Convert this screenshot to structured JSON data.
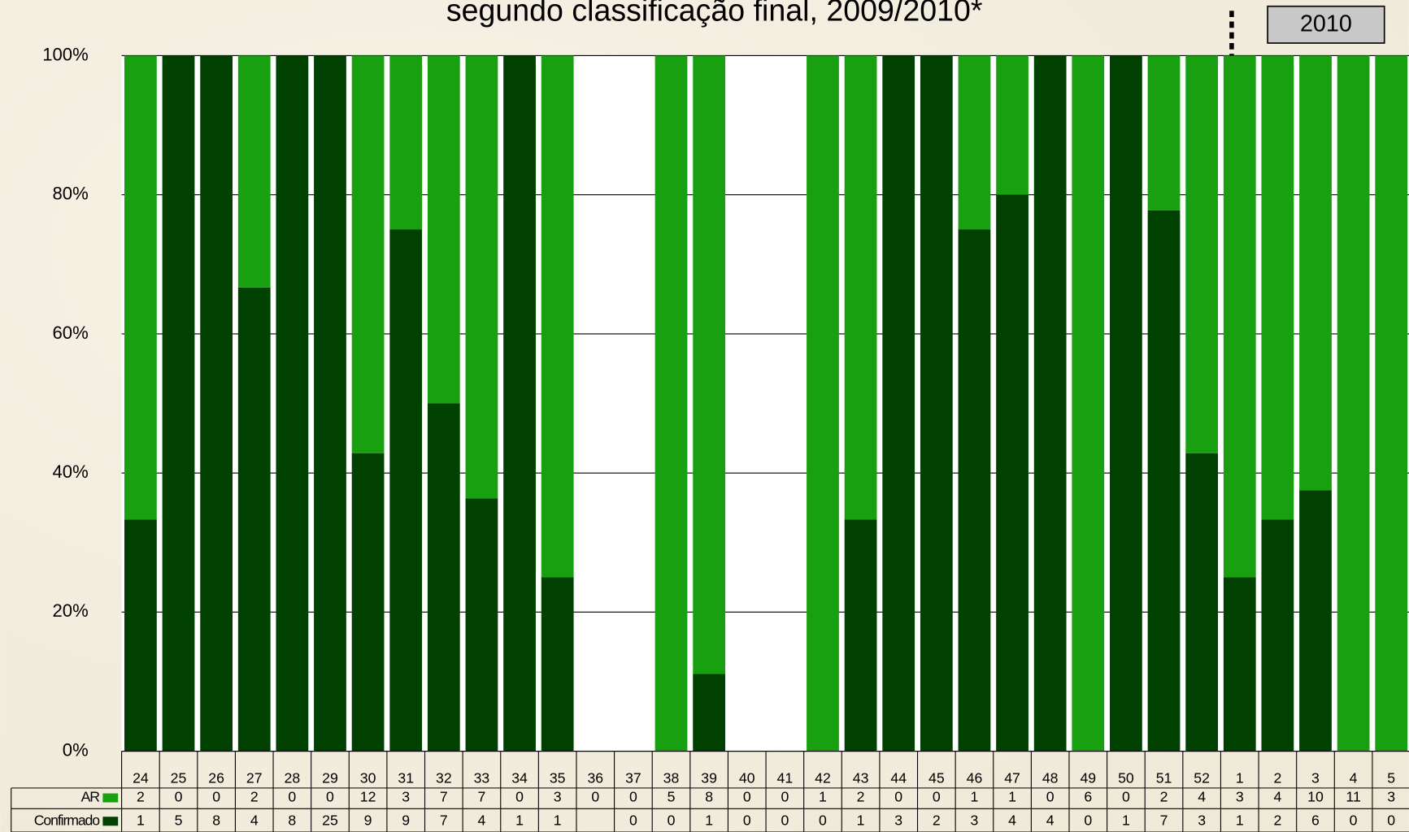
{
  "chart_data": {
    "type": "stacked_bar_percent",
    "title": "segundo classificação final, 2009/2010*",
    "annotation": "2010",
    "categories": [
      "24",
      "25",
      "26",
      "27",
      "28",
      "29",
      "30",
      "31",
      "32",
      "33",
      "34",
      "35",
      "36",
      "37",
      "38",
      "39",
      "40",
      "41",
      "42",
      "43",
      "44",
      "45",
      "46",
      "47",
      "48",
      "49",
      "50",
      "51",
      "52",
      "1",
      "2",
      "3",
      "4",
      "5"
    ],
    "series": [
      {
        "name": "AR",
        "color": "#18a010",
        "values": [
          2,
          0,
          0,
          2,
          0,
          0,
          12,
          3,
          7,
          7,
          0,
          3,
          0,
          0,
          5,
          8,
          0,
          0,
          1,
          2,
          0,
          0,
          1,
          1,
          0,
          6,
          0,
          2,
          4,
          3,
          4,
          10,
          11,
          3
        ]
      },
      {
        "name": "Confirmado",
        "color": "#004000",
        "values": [
          1,
          5,
          8,
          4,
          8,
          25,
          9,
          9,
          7,
          4,
          1,
          1,
          null,
          0,
          0,
          1,
          0,
          0,
          0,
          1,
          3,
          2,
          3,
          4,
          4,
          0,
          1,
          7,
          3,
          1,
          2,
          6,
          0,
          0
        ]
      }
    ],
    "ylim": [
      0,
      100
    ],
    "yticks": [
      {
        "value": 0,
        "label": "0%"
      },
      {
        "value": 20,
        "label": "20%"
      },
      {
        "value": 40,
        "label": "40%"
      },
      {
        "value": 60,
        "label": "60%"
      },
      {
        "value": 80,
        "label": "80%"
      },
      {
        "value": 100,
        "label": "100%"
      }
    ],
    "grid": true
  }
}
